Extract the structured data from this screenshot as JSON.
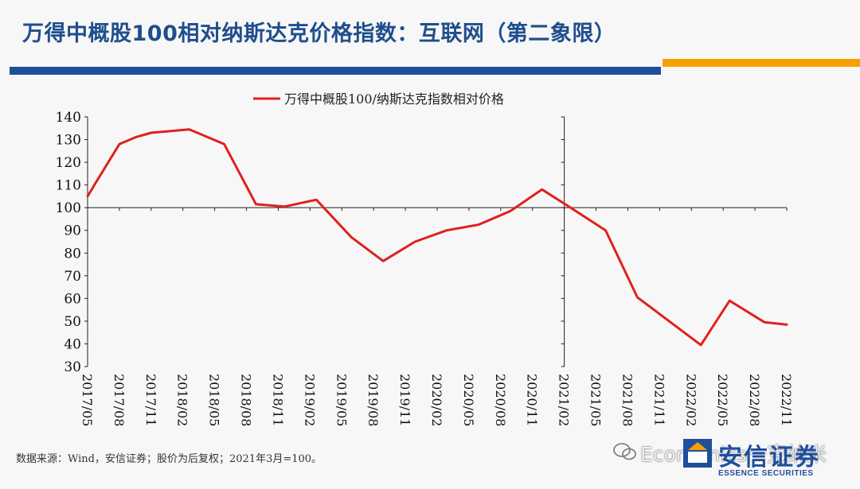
{
  "slide": {
    "title": "万得中概股100相对纳斯达克价格指数：互联网（第二象限）",
    "source_note": "数据来源：Wind，安信证券；股价为后复权；2021年3月=100。",
    "watermark": "Economics一克纳米",
    "brand_cn": "安信证券",
    "brand_en": "ESSENCE SECURITIES",
    "colors": {
      "title": "#1f4e8c",
      "bar_blue": "#1f4e9c",
      "bar_orange": "#f5a000",
      "series": "#e0201e"
    }
  },
  "chart_data": {
    "type": "line",
    "title": "",
    "xlabel": "",
    "ylabel": "",
    "ylim": [
      30,
      140
    ],
    "yticks": [
      30,
      40,
      50,
      60,
      70,
      80,
      90,
      100,
      110,
      120,
      130,
      140
    ],
    "reference_line_y": 100,
    "reference_line_x": "2021/02",
    "legend": "top-center",
    "categories": [
      "2017/05",
      "2017/08",
      "2017/11",
      "2018/02",
      "2018/05",
      "2018/08",
      "2018/11",
      "2019/02",
      "2019/05",
      "2019/08",
      "2019/11",
      "2020/02",
      "2020/05",
      "2020/08",
      "2020/11",
      "2021/02",
      "2021/05",
      "2021/08",
      "2021/11",
      "2022/02",
      "2022/05",
      "2022/08",
      "2022/11"
    ],
    "series": [
      {
        "name": "万得中概股100/纳斯达克指数相对价格",
        "color": "#e0201e",
        "points": [
          {
            "x": 0.0,
            "y": 105
          },
          {
            "x": 0.3,
            "y": 112
          },
          {
            "x": 1.0,
            "y": 128
          },
          {
            "x": 1.5,
            "y": 131
          },
          {
            "x": 2.0,
            "y": 133
          },
          {
            "x": 3.2,
            "y": 134.5
          },
          {
            "x": 4.3,
            "y": 128
          },
          {
            "x": 5.3,
            "y": 101.5
          },
          {
            "x": 6.2,
            "y": 100.5
          },
          {
            "x": 7.2,
            "y": 103.5
          },
          {
            "x": 8.3,
            "y": 87
          },
          {
            "x": 9.3,
            "y": 76.5
          },
          {
            "x": 10.3,
            "y": 85
          },
          {
            "x": 11.3,
            "y": 90
          },
          {
            "x": 12.3,
            "y": 92.5
          },
          {
            "x": 13.3,
            "y": 98.5
          },
          {
            "x": 14.3,
            "y": 108
          },
          {
            "x": 15.2,
            "y": 100
          },
          {
            "x": 16.3,
            "y": 90
          },
          {
            "x": 17.3,
            "y": 60.5
          },
          {
            "x": 18.3,
            "y": 50
          },
          {
            "x": 19.3,
            "y": 39.5
          },
          {
            "x": 20.2,
            "y": 59
          },
          {
            "x": 21.3,
            "y": 49.5
          },
          {
            "x": 22.0,
            "y": 48.5
          }
        ]
      }
    ]
  }
}
